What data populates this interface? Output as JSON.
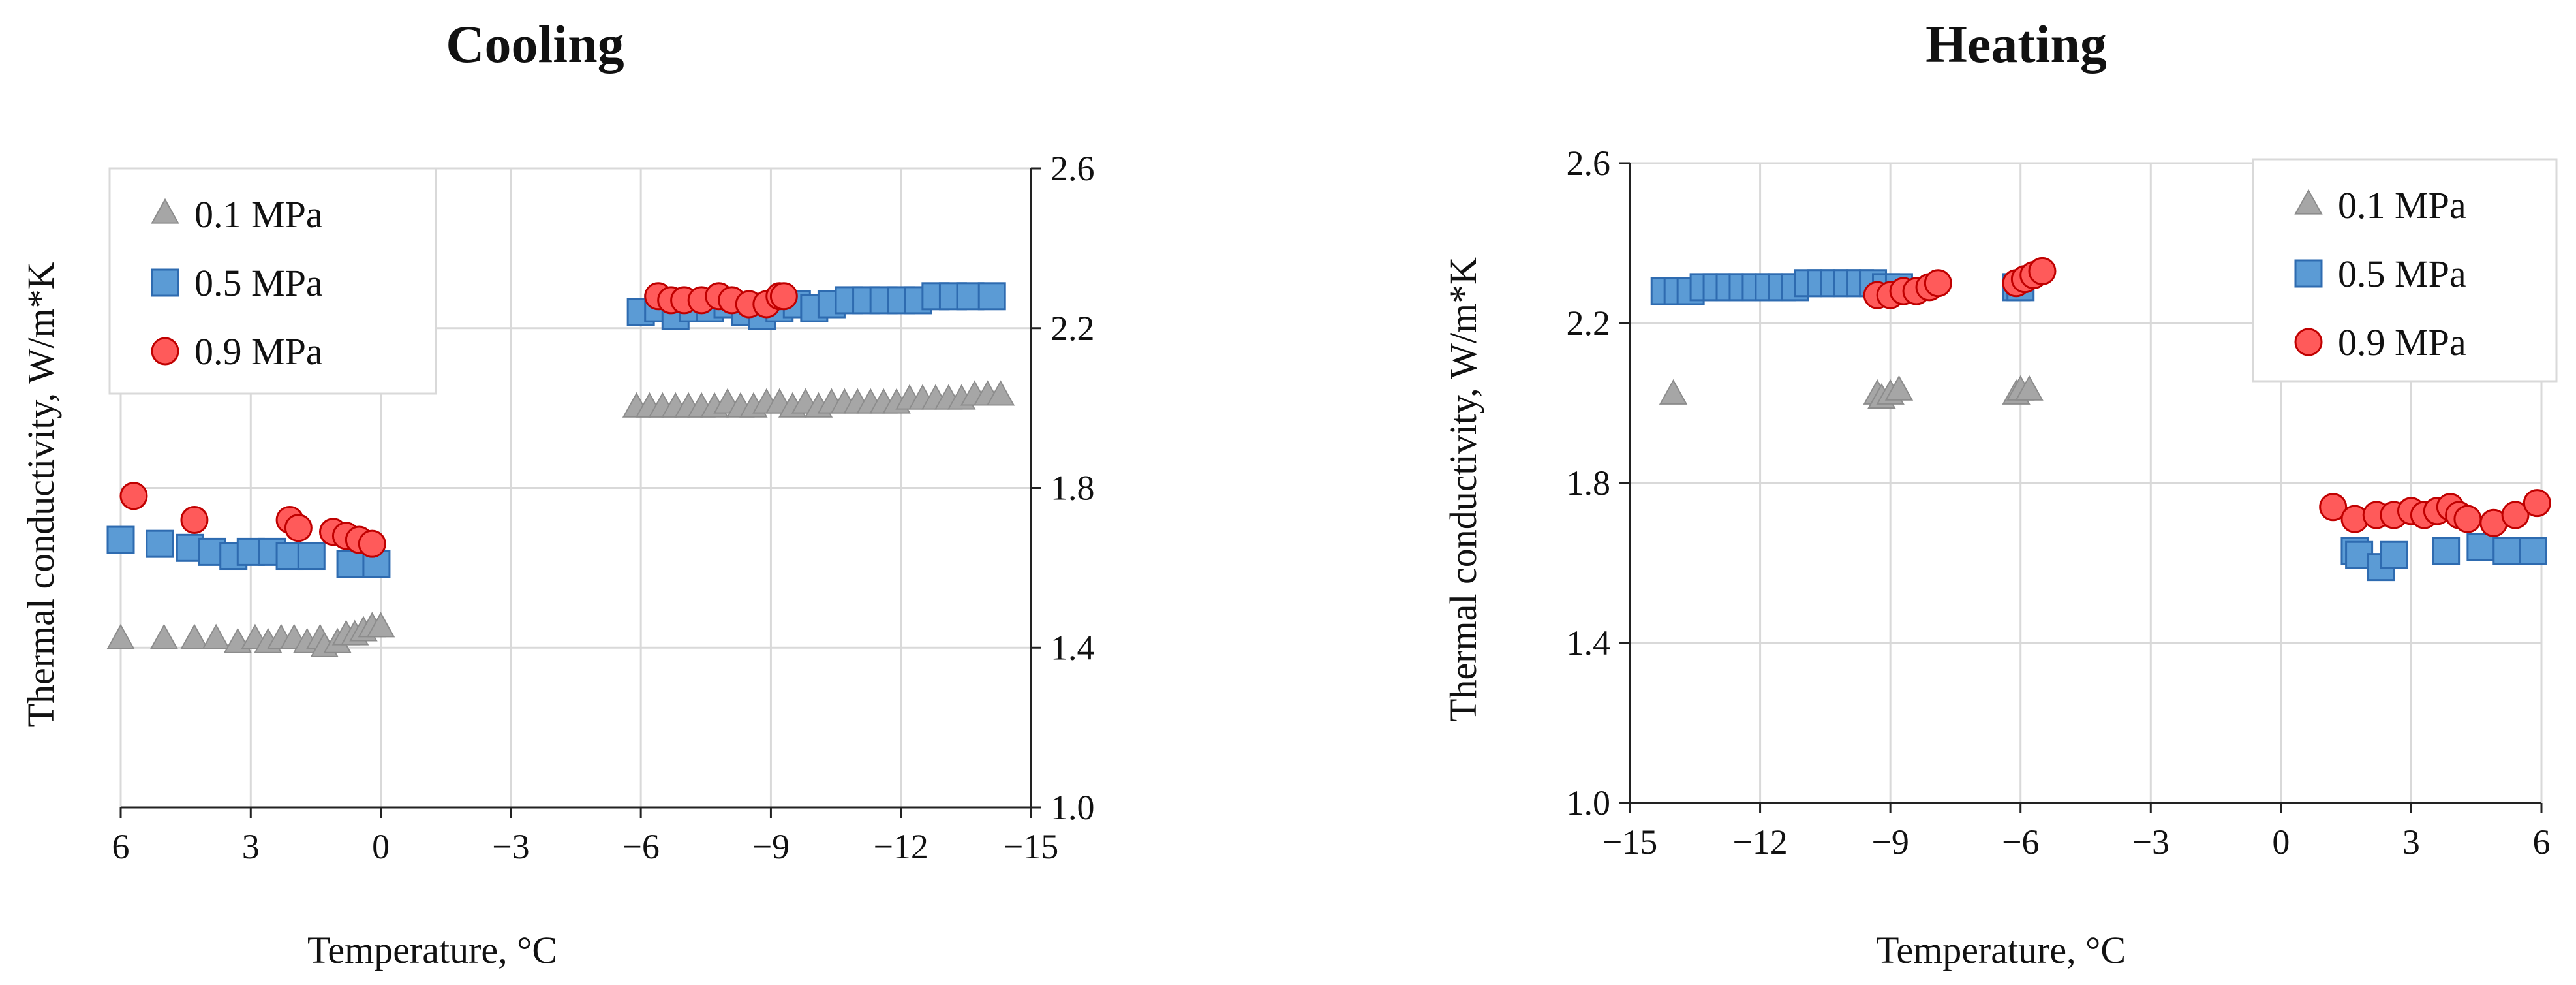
{
  "chart_data": [
    {
      "type": "scatter",
      "title": "Cooling",
      "xlabel": "Temperature, °C",
      "ylabel": "Thermal conductivity, W/m*K",
      "xlim": [
        6,
        -15
      ],
      "ylim": [
        1.0,
        2.6
      ],
      "x_reversed": true,
      "y_axis_side": "right",
      "xticks": [
        6,
        3,
        0,
        -3,
        -6,
        -9,
        -12,
        -15
      ],
      "yticks": [
        1.0,
        1.4,
        1.8,
        2.2,
        2.6
      ],
      "xtick_labels": [
        "6",
        "3",
        "0",
        "−3",
        "−6",
        "−9",
        "−12",
        "−15"
      ],
      "ytick_labels": [
        "1.0",
        "1.4",
        "1.8",
        "2.2",
        "2.6"
      ],
      "grid": true,
      "legend_position": "top-left",
      "series": [
        {
          "name": "0.1 MPa",
          "marker": "triangle",
          "color": "#a6a6a6",
          "x": [
            6.0,
            5.0,
            4.3,
            3.8,
            3.3,
            2.9,
            2.6,
            2.3,
            2.0,
            1.7,
            1.4,
            1.3,
            1.0,
            0.8,
            0.6,
            0.4,
            0.2,
            0.0,
            -5.9,
            -6.2,
            -6.5,
            -6.8,
            -7.1,
            -7.4,
            -7.7,
            -8.0,
            -8.3,
            -8.6,
            -8.9,
            -9.2,
            -9.5,
            -9.8,
            -10.1,
            -10.4,
            -10.7,
            -11.0,
            -11.3,
            -11.6,
            -11.9,
            -12.2,
            -12.5,
            -12.8,
            -13.1,
            -13.4,
            -13.7,
            -14.0,
            -14.3
          ],
          "y": [
            1.42,
            1.42,
            1.42,
            1.42,
            1.41,
            1.42,
            1.41,
            1.42,
            1.42,
            1.41,
            1.42,
            1.4,
            1.41,
            1.43,
            1.43,
            1.44,
            1.45,
            1.45,
            2.0,
            2.0,
            2.0,
            2.0,
            2.0,
            2.0,
            2.0,
            2.01,
            2.0,
            2.0,
            2.01,
            2.01,
            2.0,
            2.01,
            2.0,
            2.01,
            2.01,
            2.01,
            2.01,
            2.01,
            2.01,
            2.02,
            2.02,
            2.02,
            2.02,
            2.02,
            2.03,
            2.03,
            2.03
          ]
        },
        {
          "name": "0.5 MPa",
          "marker": "square",
          "color": "#5b9bd5",
          "x": [
            6.0,
            5.1,
            4.4,
            3.9,
            3.4,
            3.0,
            2.5,
            2.1,
            1.6,
            0.7,
            0.1,
            -6.0,
            -6.4,
            -6.8,
            -7.2,
            -7.6,
            -8.0,
            -8.4,
            -8.8,
            -9.2,
            -9.6,
            -10.0,
            -10.4,
            -10.8,
            -11.2,
            -11.6,
            -12.0,
            -12.4,
            -12.8,
            -13.2,
            -13.6,
            -14.1
          ],
          "y": [
            1.67,
            1.66,
            1.65,
            1.64,
            1.63,
            1.64,
            1.64,
            1.63,
            1.63,
            1.61,
            1.61,
            2.24,
            2.25,
            2.23,
            2.25,
            2.25,
            2.26,
            2.24,
            2.23,
            2.25,
            2.26,
            2.25,
            2.26,
            2.27,
            2.27,
            2.27,
            2.27,
            2.27,
            2.28,
            2.28,
            2.28,
            2.28
          ]
        },
        {
          "name": "0.9 MPa",
          "marker": "circle",
          "color": "#ff5a5a",
          "x": [
            5.7,
            4.3,
            2.1,
            1.9,
            1.1,
            0.8,
            0.5,
            0.2,
            -6.4,
            -6.7,
            -7.0,
            -7.4,
            -7.8,
            -8.1,
            -8.5,
            -8.9,
            -9.2,
            -9.3
          ],
          "y": [
            1.78,
            1.72,
            1.72,
            1.7,
            1.69,
            1.68,
            1.67,
            1.66,
            2.28,
            2.27,
            2.27,
            2.27,
            2.28,
            2.27,
            2.26,
            2.26,
            2.28,
            2.28
          ]
        }
      ]
    },
    {
      "type": "scatter",
      "title": "Heating",
      "xlabel": "Temperature, °C",
      "ylabel": "Thermal conductivity, W/m*K",
      "xlim": [
        -15,
        6
      ],
      "ylim": [
        1.0,
        2.6
      ],
      "x_reversed": false,
      "y_axis_side": "left",
      "xticks": [
        -15,
        -12,
        -9,
        -6,
        -3,
        0,
        3,
        6
      ],
      "yticks": [
        1.0,
        1.4,
        1.8,
        2.2,
        2.6
      ],
      "xtick_labels": [
        "−15",
        "−12",
        "−9",
        "−6",
        "−3",
        "0",
        "3",
        "6"
      ],
      "ytick_labels": [
        "1.0",
        "1.4",
        "1.8",
        "2.2",
        "2.6"
      ],
      "grid": true,
      "legend_position": "top-right",
      "series": [
        {
          "name": "0.1 MPa",
          "marker": "triangle",
          "color": "#a6a6a6",
          "x": [
            -14.0,
            -9.3,
            -9.2,
            -9.0,
            -8.8,
            -6.1,
            -6.0,
            -5.8
          ],
          "y": [
            2.02,
            2.02,
            2.01,
            2.02,
            2.03,
            2.02,
            2.03,
            2.03
          ]
        },
        {
          "name": "0.5 MPa",
          "marker": "square",
          "color": "#5b9bd5",
          "x": [
            -14.2,
            -13.9,
            -13.6,
            -13.3,
            -13.0,
            -12.7,
            -12.4,
            -12.1,
            -11.8,
            -11.5,
            -11.2,
            -10.9,
            -10.6,
            -10.3,
            -10.0,
            -9.7,
            -9.4,
            -9.1,
            -8.8,
            -6.1,
            -6.0,
            1.7,
            1.8,
            2.3,
            2.6,
            3.8,
            4.6,
            5.2,
            5.8
          ],
          "y": [
            2.28,
            2.28,
            2.28,
            2.29,
            2.29,
            2.29,
            2.29,
            2.29,
            2.29,
            2.29,
            2.29,
            2.3,
            2.3,
            2.3,
            2.3,
            2.3,
            2.3,
            2.29,
            2.29,
            2.29,
            2.29,
            1.63,
            1.62,
            1.59,
            1.62,
            1.63,
            1.64,
            1.63,
            1.63
          ]
        },
        {
          "name": "0.9 MPa",
          "marker": "circle",
          "color": "#ff5a5a",
          "x": [
            -9.3,
            -9.0,
            -8.7,
            -8.4,
            -8.1,
            -7.9,
            -6.1,
            -5.9,
            -5.7,
            -5.5,
            1.2,
            1.7,
            2.2,
            2.6,
            3.0,
            3.3,
            3.6,
            3.9,
            4.1,
            4.3,
            4.9,
            5.4,
            5.9
          ],
          "y": [
            2.27,
            2.27,
            2.28,
            2.28,
            2.29,
            2.3,
            2.3,
            2.31,
            2.32,
            2.33,
            1.74,
            1.71,
            1.72,
            1.72,
            1.73,
            1.72,
            1.73,
            1.74,
            1.72,
            1.71,
            1.7,
            1.72,
            1.75
          ]
        }
      ]
    }
  ]
}
